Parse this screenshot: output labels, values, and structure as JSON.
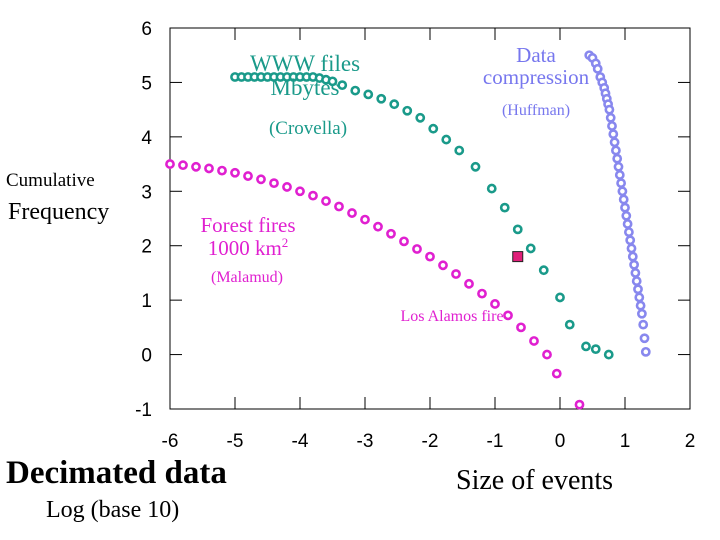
{
  "chart_data": {
    "type": "scatter",
    "xlim": [
      -6,
      2
    ],
    "ylim": [
      -1,
      6
    ],
    "x_ticks": [
      "-6",
      "-5",
      "-4",
      "-3",
      "-2",
      "-1",
      "0",
      "1",
      "2"
    ],
    "y_ticks": [
      "6",
      "5",
      "4",
      "3",
      "2",
      "1",
      "0",
      "-1"
    ],
    "y_title": {
      "line1": "Cumulative",
      "line2": "Frequency"
    },
    "series": [
      {
        "name": "WWW files Mbytes (Crovella)",
        "color": "#1a9a8a",
        "marker": "ring",
        "points": [
          [
            -5.0,
            5.1
          ],
          [
            -4.9,
            5.1
          ],
          [
            -4.8,
            5.1
          ],
          [
            -4.7,
            5.1
          ],
          [
            -4.6,
            5.1
          ],
          [
            -4.5,
            5.1
          ],
          [
            -4.4,
            5.1
          ],
          [
            -4.3,
            5.1
          ],
          [
            -4.2,
            5.1
          ],
          [
            -4.1,
            5.1
          ],
          [
            -4.0,
            5.1
          ],
          [
            -3.9,
            5.1
          ],
          [
            -3.8,
            5.1
          ],
          [
            -3.7,
            5.08
          ],
          [
            -3.6,
            5.05
          ],
          [
            -3.5,
            5.02
          ],
          [
            -3.35,
            4.95
          ],
          [
            -3.15,
            4.85
          ],
          [
            -2.95,
            4.78
          ],
          [
            -2.75,
            4.7
          ],
          [
            -2.55,
            4.6
          ],
          [
            -2.35,
            4.48
          ],
          [
            -2.15,
            4.35
          ],
          [
            -1.95,
            4.15
          ],
          [
            -1.75,
            3.95
          ],
          [
            -1.55,
            3.75
          ],
          [
            -1.3,
            3.45
          ],
          [
            -1.05,
            3.05
          ],
          [
            -0.85,
            2.7
          ],
          [
            -0.65,
            2.3
          ],
          [
            -0.45,
            1.95
          ],
          [
            -0.25,
            1.55
          ],
          [
            0.0,
            1.05
          ],
          [
            0.15,
            0.55
          ],
          [
            0.4,
            0.15
          ],
          [
            0.55,
            0.1
          ],
          [
            0.75,
            0.0
          ]
        ]
      },
      {
        "name": "Forest fires 1000 km2 (Malamud)",
        "color": "#e020d0",
        "marker": "ring",
        "points": [
          [
            -6.0,
            3.5
          ],
          [
            -5.8,
            3.48
          ],
          [
            -5.6,
            3.45
          ],
          [
            -5.4,
            3.42
          ],
          [
            -5.2,
            3.38
          ],
          [
            -5.0,
            3.34
          ],
          [
            -4.8,
            3.28
          ],
          [
            -4.6,
            3.22
          ],
          [
            -4.4,
            3.15
          ],
          [
            -4.2,
            3.08
          ],
          [
            -4.0,
            3.0
          ],
          [
            -3.8,
            2.92
          ],
          [
            -3.6,
            2.82
          ],
          [
            -3.4,
            2.72
          ],
          [
            -3.2,
            2.6
          ],
          [
            -3.0,
            2.48
          ],
          [
            -2.8,
            2.35
          ],
          [
            -2.6,
            2.22
          ],
          [
            -2.4,
            2.08
          ],
          [
            -2.2,
            1.94
          ],
          [
            -2.0,
            1.8
          ],
          [
            -1.8,
            1.64
          ],
          [
            -1.6,
            1.48
          ],
          [
            -1.4,
            1.3
          ],
          [
            -1.2,
            1.12
          ],
          [
            -1.0,
            0.93
          ],
          [
            -0.8,
            0.72
          ],
          [
            -0.6,
            0.5
          ],
          [
            -0.4,
            0.25
          ],
          [
            -0.2,
            0.0
          ],
          [
            -0.05,
            -0.35
          ],
          [
            0.3,
            -0.92
          ]
        ]
      },
      {
        "name": "Data compression (Huffman)",
        "color": "#8888ee",
        "marker": "ring",
        "points": [
          [
            0.45,
            5.5
          ],
          [
            0.5,
            5.45
          ],
          [
            0.55,
            5.35
          ],
          [
            0.58,
            5.25
          ],
          [
            0.62,
            5.1
          ],
          [
            0.65,
            5.0
          ],
          [
            0.68,
            4.9
          ],
          [
            0.7,
            4.8
          ],
          [
            0.72,
            4.7
          ],
          [
            0.74,
            4.6
          ],
          [
            0.76,
            4.5
          ],
          [
            0.78,
            4.35
          ],
          [
            0.8,
            4.2
          ],
          [
            0.82,
            4.05
          ],
          [
            0.84,
            3.9
          ],
          [
            0.86,
            3.75
          ],
          [
            0.88,
            3.6
          ],
          [
            0.9,
            3.45
          ],
          [
            0.92,
            3.3
          ],
          [
            0.94,
            3.15
          ],
          [
            0.96,
            3.0
          ],
          [
            0.98,
            2.85
          ],
          [
            1.0,
            2.7
          ],
          [
            1.02,
            2.55
          ],
          [
            1.04,
            2.4
          ],
          [
            1.06,
            2.25
          ],
          [
            1.08,
            2.1
          ],
          [
            1.1,
            1.95
          ],
          [
            1.12,
            1.8
          ],
          [
            1.14,
            1.65
          ],
          [
            1.16,
            1.5
          ],
          [
            1.18,
            1.35
          ],
          [
            1.2,
            1.2
          ],
          [
            1.22,
            1.05
          ],
          [
            1.24,
            0.9
          ],
          [
            1.26,
            0.75
          ],
          [
            1.28,
            0.55
          ],
          [
            1.3,
            0.3
          ],
          [
            1.32,
            0.05
          ]
        ]
      }
    ],
    "marker_point": {
      "name": "Los Alamos fire",
      "x": -0.65,
      "y": 1.8,
      "color": "#e0207a"
    }
  },
  "labels": {
    "www_line1": "WWW files",
    "www_line2": "Mbytes",
    "www_credit": "(Crovella)",
    "data_line1": "Data",
    "data_line2": "compression",
    "data_credit": "(Huffman)",
    "forest_line1": "Forest fires",
    "forest_line2": "1000 km",
    "forest_sup": "2",
    "forest_credit": "(Malamud)",
    "los_alamos": "Los Alamos fire"
  },
  "footer": {
    "title": "Decimated data",
    "subtitle": "Log (base 10)",
    "xlabel": "Size of events"
  },
  "colors": {
    "www": "#1a9a8a",
    "forest": "#e020d0",
    "data": "#7777ee",
    "marker": "#e0207a"
  }
}
